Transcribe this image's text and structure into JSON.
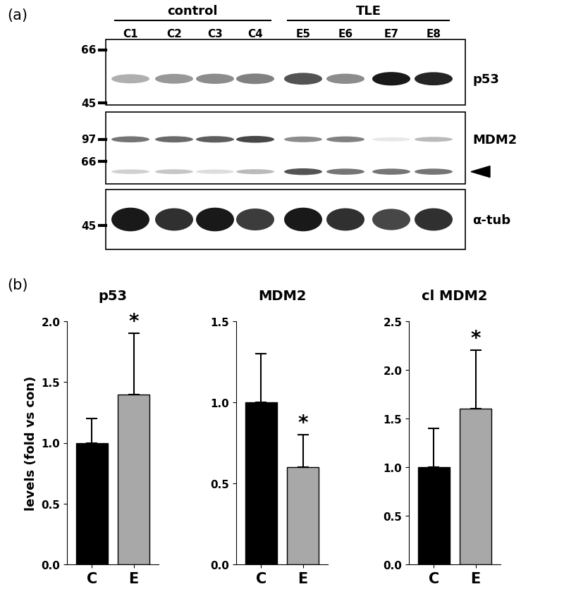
{
  "blot": {
    "panel_label": "(a)",
    "groups": [
      {
        "label": "control",
        "lanes": [
          "C1",
          "C2",
          "C3",
          "C4"
        ]
      },
      {
        "label": "TLE",
        "lanes": [
          "E5",
          "E6",
          "E7",
          "E8"
        ]
      }
    ],
    "rows": [
      {
        "label": "p53",
        "markers": [
          66,
          45
        ],
        "bands": [
          {
            "intensity": [
              0.35,
              0.45,
              0.5,
              0.55,
              0.75,
              0.5,
              1.0,
              0.95
            ]
          }
        ]
      },
      {
        "label": "MDM2",
        "markers": [
          97,
          66
        ],
        "bands": [
          {
            "intensity": [
              0.6,
              0.65,
              0.7,
              0.8,
              0.5,
              0.55,
              0.1,
              0.3
            ]
          },
          {
            "intensity": [
              0.2,
              0.25,
              0.15,
              0.3,
              0.75,
              0.6,
              0.6,
              0.6
            ],
            "arrow": true
          }
        ]
      },
      {
        "label": "α-tub",
        "markers": [
          45
        ],
        "bands": [
          {
            "intensity": [
              1.0,
              0.9,
              1.0,
              0.85,
              1.0,
              0.9,
              0.8,
              0.9
            ]
          }
        ]
      }
    ]
  },
  "panel_label_b": "(b)",
  "chart_data": [
    {
      "type": "bar",
      "title": "p53",
      "ylabel": "levels (fold vs con)",
      "categories": [
        "C",
        "E"
      ],
      "values": [
        1.0,
        1.4
      ],
      "error": [
        0.2,
        0.5
      ],
      "colors": [
        "#000000",
        "#a8a8a8"
      ],
      "ylim": [
        0,
        2.0
      ],
      "yticks": [
        {
          "value": 0,
          "label": "0.0"
        },
        {
          "value": 0.5,
          "label": "0.5"
        },
        {
          "value": 1.0,
          "label": "1.0"
        },
        {
          "value": 1.5,
          "label": "1.5"
        },
        {
          "value": 2.0,
          "label": "2.0"
        }
      ],
      "annotations": [
        {
          "category": "E",
          "text": "*"
        }
      ]
    },
    {
      "type": "bar",
      "title": "MDM2",
      "categories": [
        "C",
        "E"
      ],
      "values": [
        1.0,
        0.6
      ],
      "error": [
        0.3,
        0.2
      ],
      "colors": [
        "#000000",
        "#a8a8a8"
      ],
      "ylim": [
        0,
        1.5
      ],
      "yticks": [
        {
          "value": 0,
          "label": "0.0"
        },
        {
          "value": 0.5,
          "label": "0.5"
        },
        {
          "value": 1.0,
          "label": "1.0"
        },
        {
          "value": 1.5,
          "label": "1.5"
        }
      ],
      "annotations": [
        {
          "category": "E",
          "text": "*"
        }
      ]
    },
    {
      "type": "bar",
      "title": "cl MDM2",
      "categories": [
        "C",
        "E"
      ],
      "values": [
        1.0,
        1.6
      ],
      "error": [
        0.4,
        0.6
      ],
      "colors": [
        "#000000",
        "#a8a8a8"
      ],
      "ylim": [
        0,
        2.5
      ],
      "yticks": [
        {
          "value": 0,
          "label": "0.0"
        },
        {
          "value": 0.5,
          "label": "0.5"
        },
        {
          "value": 1.0,
          "label": "1.0"
        },
        {
          "value": 1.5,
          "label": "1.5"
        },
        {
          "value": 2.0,
          "label": "2.0"
        },
        {
          "value": 2.5,
          "label": "2.5"
        }
      ],
      "annotations": [
        {
          "category": "E",
          "text": "*"
        }
      ]
    }
  ]
}
